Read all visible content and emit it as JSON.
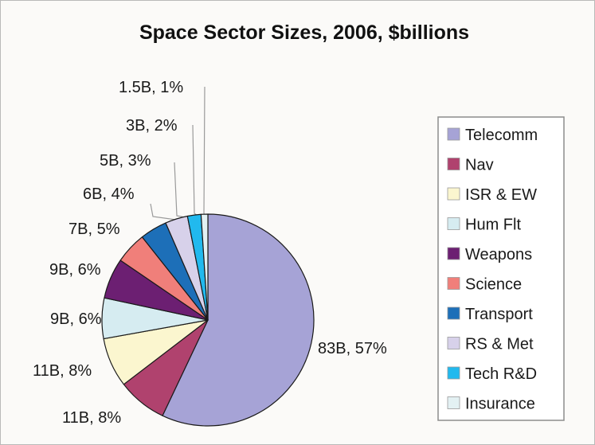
{
  "chart_data": {
    "type": "pie",
    "title": "Space Sector Sizes, 2006, $billions",
    "categories": [
      "Telecomm",
      "Nav",
      "ISR & EW",
      "Hum Flt",
      "Weapons",
      "Science",
      "Transport",
      "RS & Met",
      "Tech R&D",
      "Insurance"
    ],
    "values": [
      83,
      11,
      11,
      9,
      9,
      7,
      6,
      5,
      3,
      1.5
    ],
    "data_labels": [
      "83B, 57%",
      "11B, 8%",
      "11B, 8%",
      "9B, 6%",
      "9B, 6%",
      "7B, 5%",
      "6B, 4%",
      "5B, 3%",
      "3B, 2%",
      "1.5B, 1%"
    ],
    "colors": [
      "#a6a3d6",
      "#b0426e",
      "#fbf6cf",
      "#d6ecf1",
      "#6c1f72",
      "#f07f7a",
      "#1d6fb8",
      "#d7d1ea",
      "#21b9ee",
      "#e3f1f3"
    ],
    "legend_position": "right"
  }
}
